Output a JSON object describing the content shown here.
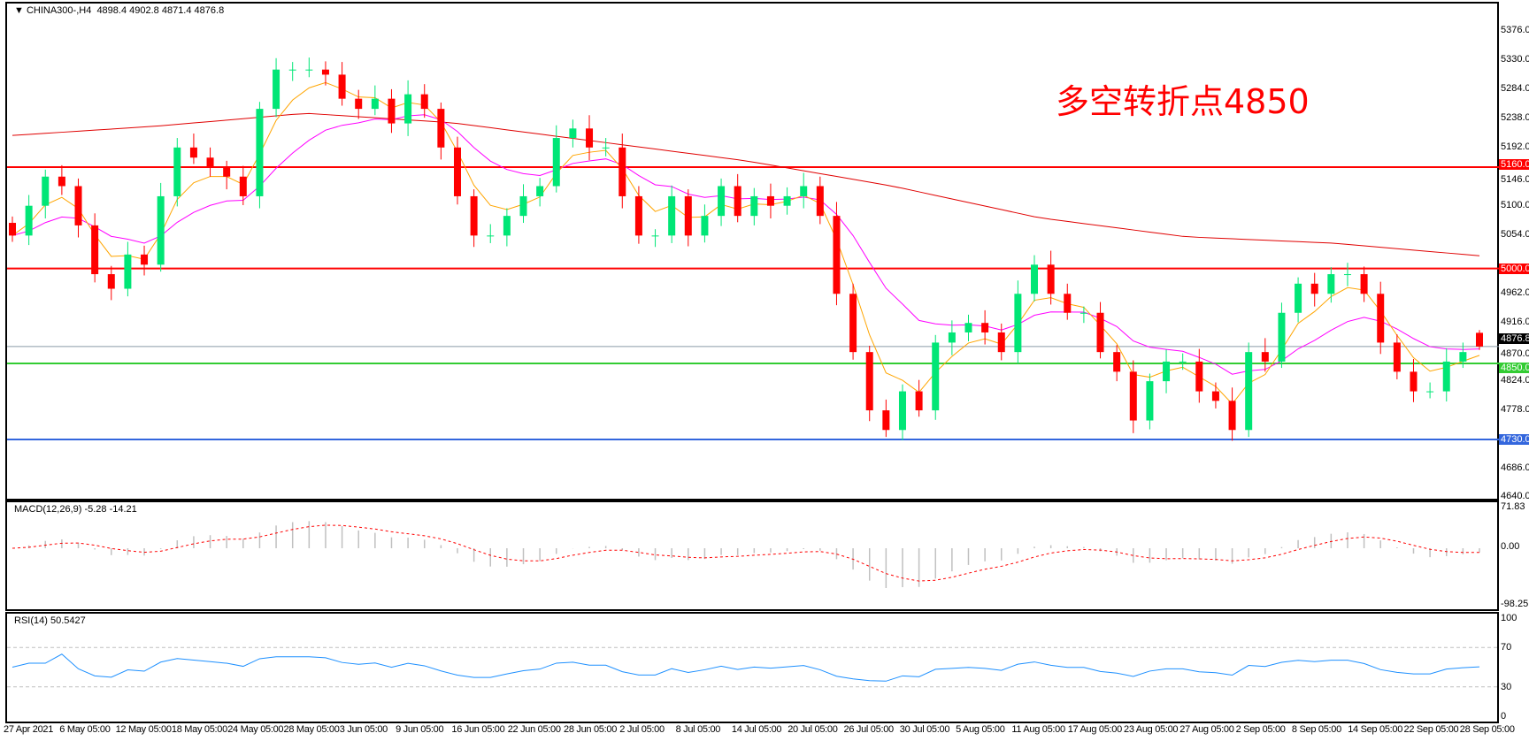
{
  "header": {
    "arrow": "▼",
    "symbol": "CHINA300-,H4",
    "ohlc": "4898.4 4902.8 4871.4 4876.8"
  },
  "annotation": "多空转折点4850",
  "colors": {
    "bull": "#00e676",
    "bear": "#ff0000",
    "ma_fast": "#ffa500",
    "ma_mid": "#ff00ff",
    "ma_slow": "#e00000",
    "macd_hist": "#c0c0c0",
    "macd_signal": "#ff0000",
    "rsi": "#1e90ff"
  },
  "price_axis": {
    "min": 4640,
    "max": 5376,
    "ticks": [
      "5376.0",
      "5330.0",
      "5284.0",
      "5238.0",
      "5192.0",
      "5146.0",
      "5100.0",
      "5054.0",
      "4962.0",
      "4916.0",
      "4870.0",
      "4824.0",
      "4778.0",
      "4686.0",
      "4640.0"
    ]
  },
  "levels": [
    {
      "value": 5160,
      "label": "5160.0",
      "color": "#ff0000"
    },
    {
      "value": 5000,
      "label": "5000.0",
      "color": "#ff0000"
    },
    {
      "value": 4876.8,
      "label": "4876.8",
      "color": "#8a9aa8",
      "tag_bg": "#000"
    },
    {
      "value": 4850,
      "label": "4850.0",
      "color": "#33cc33"
    },
    {
      "value": 4730,
      "label": "4730.0",
      "color": "#3366dd"
    }
  ],
  "chart_data": {
    "type": "candlestick",
    "closes": [
      5052,
      5099,
      5145,
      5130,
      5068,
      4991,
      4968,
      5022,
      5006,
      5114,
      5191,
      5175,
      5160,
      5145,
      5114,
      5252,
      5314,
      5314,
      5314,
      5306,
      5268,
      5252,
      5268,
      5229,
      5275,
      5252,
      5191,
      5114,
      5052,
      5052,
      5083,
      5114,
      5130,
      5206,
      5221,
      5191,
      5191,
      5114,
      5052,
      5052,
      5114,
      5052,
      5083,
      5130,
      5083,
      5114,
      5099,
      5114,
      5130,
      5083,
      4960,
      4868,
      4776,
      4745,
      4806,
      4776,
      4883,
      4899,
      4914,
      4899,
      4868,
      4960,
      5006,
      4960,
      4930,
      4930,
      4868,
      4837,
      4760,
      4822,
      4853,
      4853,
      4806,
      4791,
      4745,
      4868,
      4853,
      4930,
      4976,
      4960,
      4991,
      4991,
      4960,
      4883,
      4837,
      4806,
      4806,
      4853,
      4868,
      4876.8
    ],
    "last_bar": {
      "open": 4898.4,
      "high": 4902.8,
      "low": 4871.4,
      "close": 4876.8
    },
    "slow_ma": [
      5210,
      5225,
      5245,
      5230,
      5200,
      5170,
      5130,
      5080,
      5050,
      5040,
      5020
    ]
  },
  "macd": {
    "label": "MACD(12,26,9) -5.28 -14.21",
    "ticks": [
      "71.83",
      "0.00",
      "-98.25"
    ]
  },
  "rsi": {
    "label": "RSI(14) 50.5427",
    "ticks": [
      "100",
      "70",
      "30",
      "0"
    ],
    "levels": [
      70,
      30
    ]
  },
  "time_axis": [
    "27 Apr 2021",
    "6 May 05:00",
    "12 May 05:00",
    "18 May 05:00",
    "24 May 05:00",
    "28 May 05:00",
    "3 Jun 05:00",
    "9 Jun 05:00",
    "16 Jun 05:00",
    "22 Jun 05:00",
    "28 Jun 05:00",
    "2 Jul 05:00",
    "8 Jul 05:00",
    "14 Jul 05:00",
    "20 Jul 05:00",
    "26 Jul 05:00",
    "30 Jul 05:00",
    "5 Aug 05:00",
    "11 Aug 05:00",
    "17 Aug 05:00",
    "23 Aug 05:00",
    "27 Aug 05:00",
    "2 Sep 05:00",
    "8 Sep 05:00",
    "14 Sep 05:00",
    "22 Sep 05:00",
    "28 Sep 05:00"
  ]
}
